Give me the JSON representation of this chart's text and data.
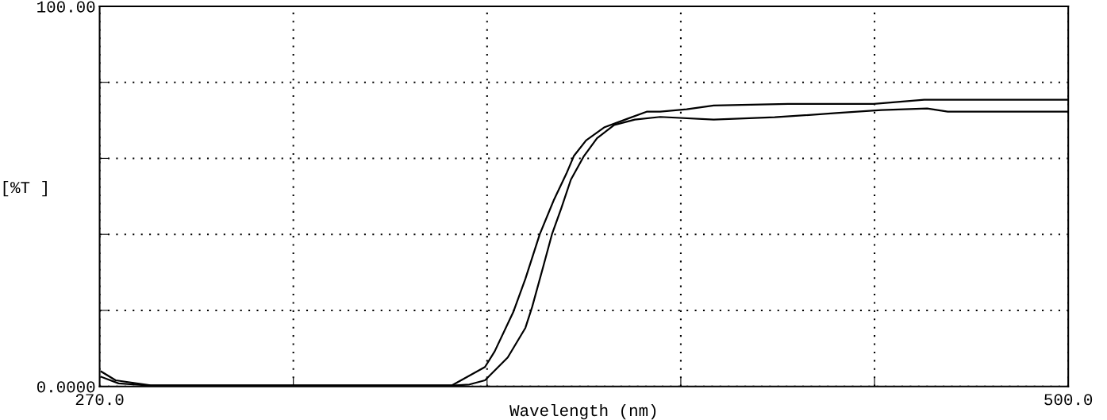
{
  "chart_data": {
    "type": "line",
    "xlabel": "Wavelength (nm)",
    "ylabel": "[%T ]",
    "xlim": [
      270,
      500
    ],
    "ylim": [
      0,
      100
    ],
    "xticks": [
      {
        "value": 270,
        "label": "270.0"
      },
      {
        "value": 316,
        "label": null
      },
      {
        "value": 362,
        "label": null
      },
      {
        "value": 408,
        "label": null
      },
      {
        "value": 454,
        "label": null
      },
      {
        "value": 500,
        "label": "500.0"
      }
    ],
    "yticks": [
      {
        "value": 0,
        "label": "0.0000"
      },
      {
        "value": 20,
        "label": null
      },
      {
        "value": 40,
        "label": null
      },
      {
        "value": 60,
        "label": null
      },
      {
        "value": 80,
        "label": null
      },
      {
        "value": 100,
        "label": "100.00"
      }
    ],
    "grid": true,
    "legend": false,
    "marker": "none",
    "line_style": "solid",
    "series": [
      {
        "color": "#000000",
        "x": [
          270.4,
          273.8,
          282.1,
          321.6,
          353.7,
          361.5,
          363.8,
          368.2,
          371.1,
          374.5,
          377.8,
          380.8,
          382.6,
          385.5,
          389.9,
          395.3,
          400.0,
          403.1,
          409.4,
          415.8,
          433.5,
          453.8,
          465.8,
          500
        ],
        "values": [
          3.9,
          1.6,
          0.3,
          0.3,
          0.3,
          5.1,
          9.2,
          19.5,
          28.3,
          40,
          48.9,
          55.9,
          60.6,
          64.7,
          68.2,
          70.4,
          72.3,
          72.3,
          72.9,
          73.9,
          74.3,
          74.3,
          75.4,
          75.4
        ]
      },
      {
        "color": "#000000",
        "x": [
          270.4,
          274.5,
          282.1,
          353.7,
          357.8,
          361.5,
          366.9,
          371.1,
          372.7,
          375.4,
          377.4,
          379.6,
          381.9,
          385.0,
          388.1,
          392.2,
          397.1,
          403.1,
          415.8,
          430.3,
          444.9,
          455.6,
          466.5,
          471.4,
          500
        ],
        "values": [
          2.5,
          0.8,
          0.2,
          0.2,
          0.5,
          1.6,
          7.6,
          15.4,
          20.9,
          31.8,
          40,
          46.8,
          54.4,
          60.6,
          65.3,
          68.8,
          70.2,
          70.9,
          70.2,
          70.8,
          71.9,
          72.7,
          73.1,
          72.3,
          72.3
        ]
      }
    ]
  }
}
